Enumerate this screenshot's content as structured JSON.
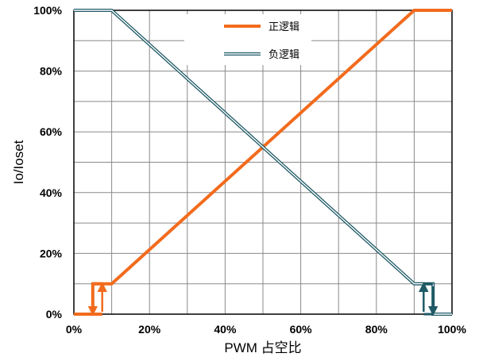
{
  "chart_data": {
    "type": "line",
    "xlabel": "PWM 占空比",
    "ylabel": "Io/Ioset",
    "xlim": [
      0,
      100
    ],
    "ylim": [
      0,
      100
    ],
    "x_ticks": [
      "0%",
      "20%",
      "40%",
      "60%",
      "80%",
      "100%"
    ],
    "y_ticks": [
      "0%",
      "20%",
      "40%",
      "60%",
      "80%",
      "100%"
    ],
    "grid": true,
    "legend_position": "top-center",
    "colors": {
      "positive": "#F26B1D",
      "negative": "#1F5A66"
    },
    "series": [
      {
        "name": "正逻辑",
        "style": "solid-thick",
        "x": [
          0,
          5,
          5,
          10,
          90,
          100
        ],
        "y": [
          0,
          0,
          10,
          10,
          100,
          100
        ],
        "hysteresis": {
          "x_low": 5,
          "x_high": 7.5,
          "y_low": 0,
          "y_high": 10,
          "arrow_down_x": 5,
          "arrow_up_x": 7.5
        }
      },
      {
        "name": "负逻辑",
        "style": "double-line",
        "x": [
          0,
          10,
          90,
          95,
          95,
          100
        ],
        "y": [
          100,
          100,
          10,
          10,
          0,
          0
        ],
        "hysteresis": {
          "x_low": 92.5,
          "x_high": 95,
          "y_low": 0,
          "y_high": 10,
          "arrow_up_x": 92.5,
          "arrow_down_x": 95
        }
      }
    ]
  }
}
